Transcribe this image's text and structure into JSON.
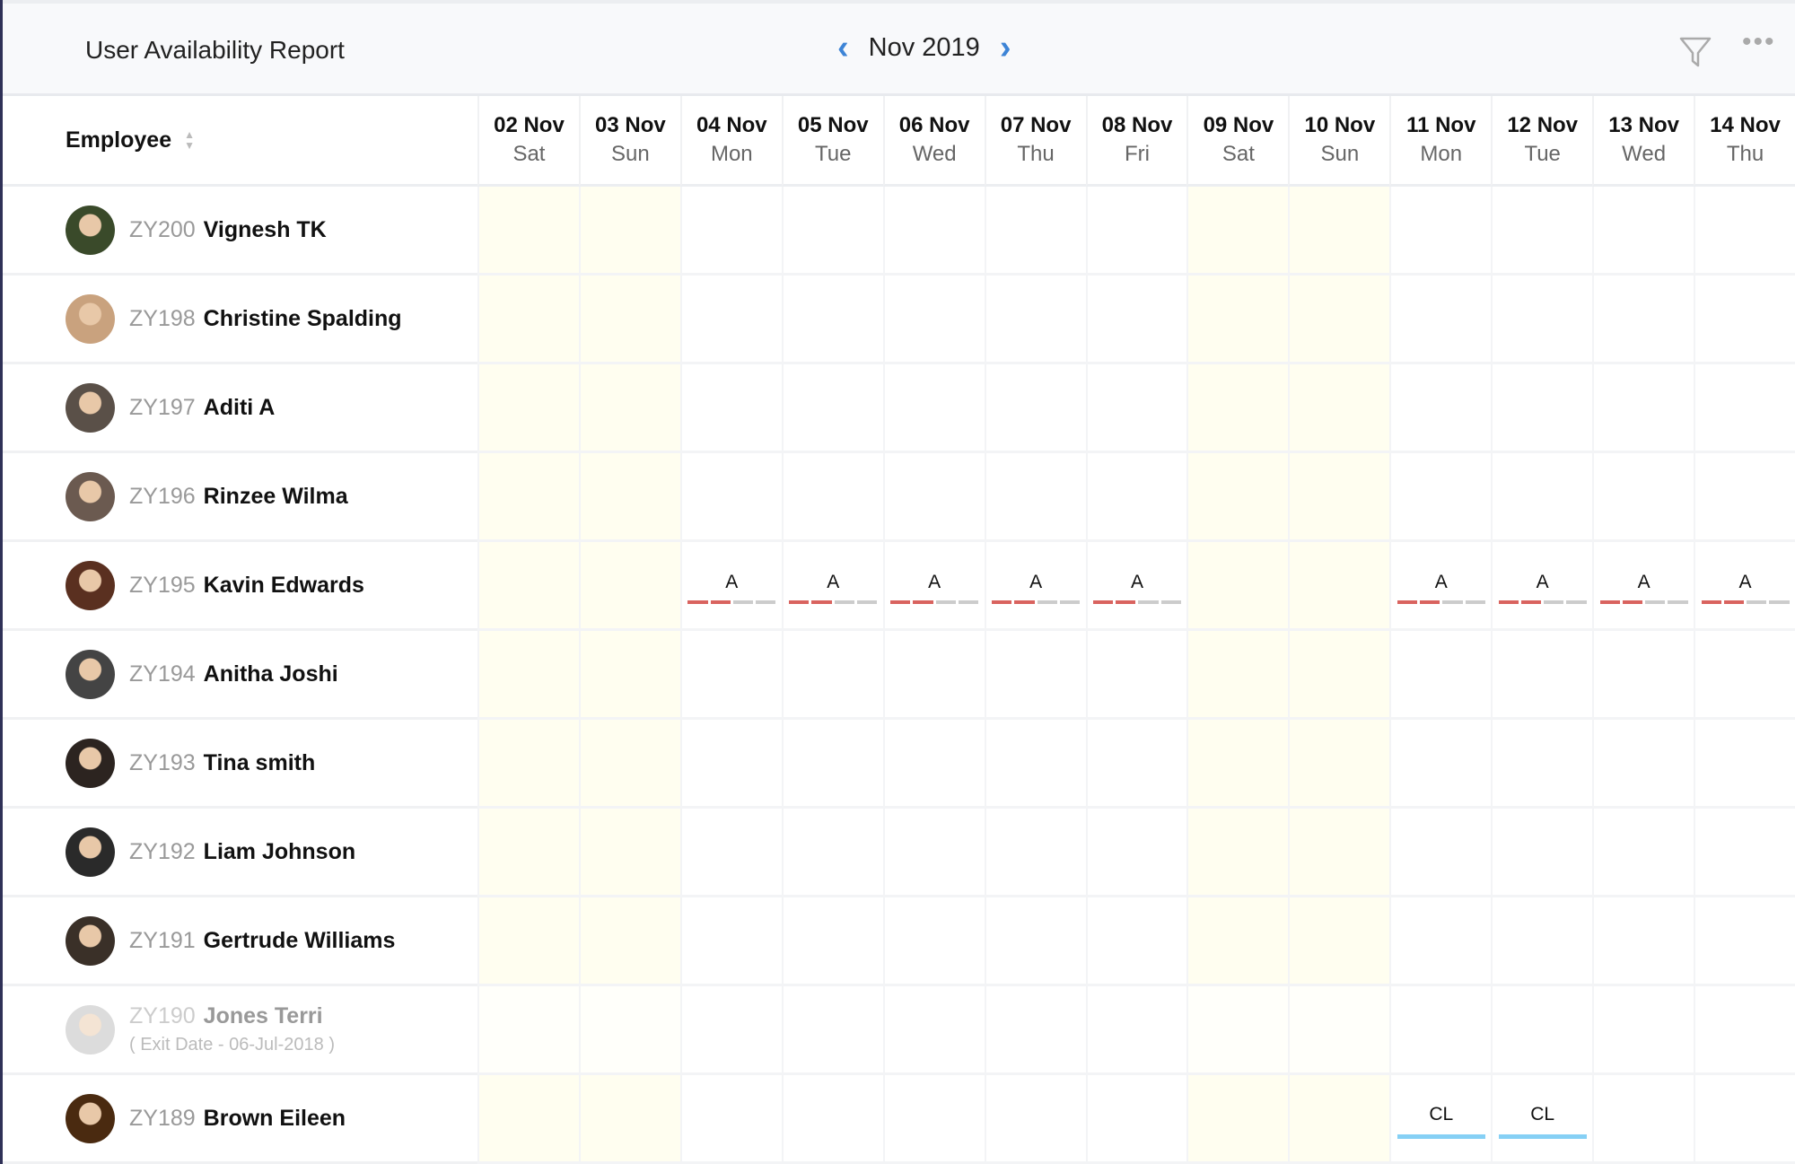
{
  "header": {
    "title": "User Availability Report",
    "month": "Nov 2019",
    "prev_icon": "chevron-left-icon",
    "next_icon": "chevron-right-icon",
    "filter_icon": "filter-icon",
    "more_icon": "more-horizontal-icon"
  },
  "colors": {
    "accent": "#3d84d6",
    "absent": "#d9635f",
    "absent_rest": "#cccccc",
    "casual_leave": "#86d0f5",
    "weekend": "#fffef0"
  },
  "table": {
    "employee_header": "Employee",
    "dates": [
      {
        "date": "02 Nov",
        "day": "Sat",
        "weekend": true
      },
      {
        "date": "03 Nov",
        "day": "Sun",
        "weekend": true
      },
      {
        "date": "04 Nov",
        "day": "Mon"
      },
      {
        "date": "05 Nov",
        "day": "Tue"
      },
      {
        "date": "06 Nov",
        "day": "Wed"
      },
      {
        "date": "07 Nov",
        "day": "Thu"
      },
      {
        "date": "08 Nov",
        "day": "Fri"
      },
      {
        "date": "09 Nov",
        "day": "Sat",
        "weekend": true
      },
      {
        "date": "10 Nov",
        "day": "Sun",
        "weekend": true
      },
      {
        "date": "11 Nov",
        "day": "Mon"
      },
      {
        "date": "12 Nov",
        "day": "Tue"
      },
      {
        "date": "13 Nov",
        "day": "Wed"
      },
      {
        "date": "14 Nov",
        "day": "Thu"
      }
    ],
    "rows": [
      {
        "id": "ZY200",
        "name": "Vignesh TK",
        "cells": [
          "",
          "",
          "",
          "",
          "",
          "",
          "",
          "",
          "",
          "",
          "",
          "",
          ""
        ]
      },
      {
        "id": "ZY198",
        "name": "Christine Spalding",
        "cells": [
          "",
          "",
          "",
          "",
          "",
          "",
          "",
          "",
          "",
          "",
          "",
          "",
          ""
        ]
      },
      {
        "id": "ZY197",
        "name": "Aditi A",
        "cells": [
          "",
          "",
          "",
          "",
          "",
          "",
          "",
          "",
          "",
          "",
          "",
          "",
          ""
        ]
      },
      {
        "id": "ZY196",
        "name": "Rinzee Wilma",
        "cells": [
          "",
          "",
          "",
          "",
          "",
          "",
          "",
          "",
          "",
          "",
          "",
          "",
          ""
        ]
      },
      {
        "id": "ZY195",
        "name": "Kavin Edwards",
        "cells": [
          "",
          "",
          "A",
          "A",
          "A",
          "A",
          "A",
          "",
          "",
          "A",
          "A",
          "A",
          "A"
        ]
      },
      {
        "id": "ZY194",
        "name": "Anitha Joshi",
        "cells": [
          "",
          "",
          "",
          "",
          "",
          "",
          "",
          "",
          "",
          "",
          "",
          "",
          ""
        ]
      },
      {
        "id": "ZY193",
        "name": "Tina smith",
        "cells": [
          "",
          "",
          "",
          "",
          "",
          "",
          "",
          "",
          "",
          "",
          "",
          "",
          ""
        ]
      },
      {
        "id": "ZY192",
        "name": "Liam Johnson",
        "cells": [
          "",
          "",
          "",
          "",
          "",
          "",
          "",
          "",
          "",
          "",
          "",
          "",
          ""
        ]
      },
      {
        "id": "ZY191",
        "name": "Gertrude Williams",
        "cells": [
          "",
          "",
          "",
          "",
          "",
          "",
          "",
          "",
          "",
          "",
          "",
          "",
          ""
        ]
      },
      {
        "id": "ZY190",
        "name": "Jones Terri",
        "exit_date": "( Exit Date - 06-Jul-2018 )",
        "cells": [
          "",
          "",
          "",
          "",
          "",
          "",
          "",
          "",
          "",
          "",
          "",
          "",
          ""
        ]
      },
      {
        "id": "ZY189",
        "name": "Brown Eileen",
        "cells": [
          "",
          "",
          "",
          "",
          "",
          "",
          "",
          "",
          "",
          "CL",
          "CL",
          "",
          ""
        ]
      }
    ]
  }
}
